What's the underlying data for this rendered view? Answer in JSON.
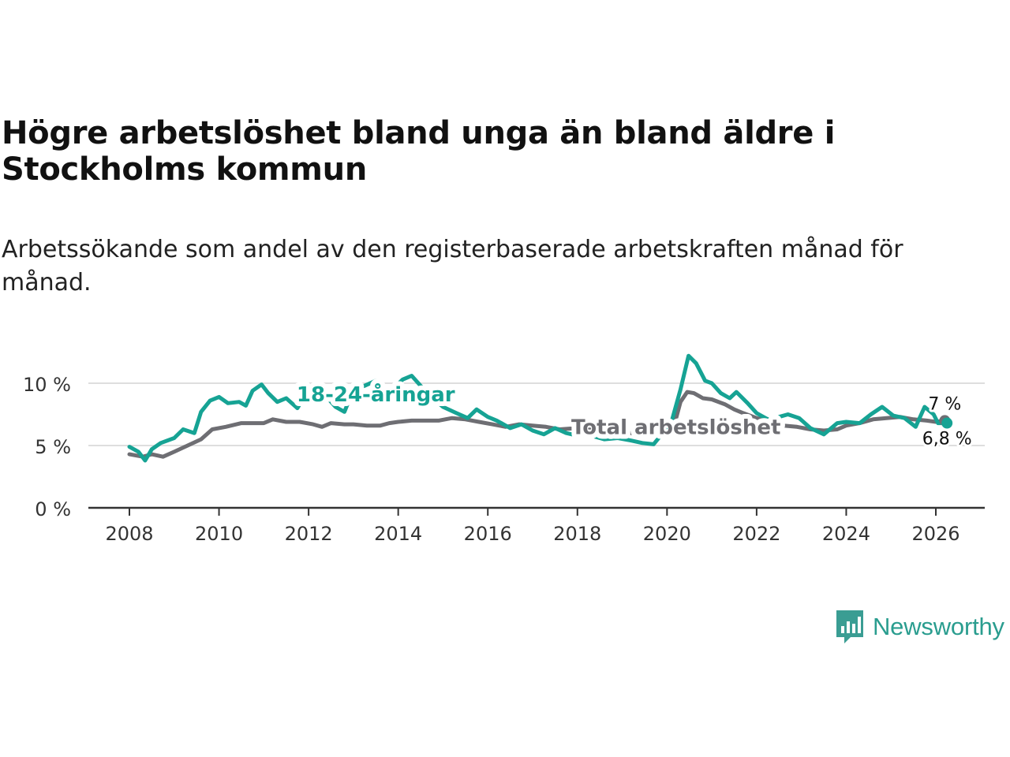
{
  "header": {
    "title": "Högre arbetslöshet bland unga än bland äldre i Stockholms kommun",
    "subtitle": "Arbetssökande som andel av den registerbaserade arbetskraften månad för månad."
  },
  "brand": {
    "name": "Newsworthy",
    "icon": "bar-chart-speech-icon",
    "color": "#3a9d93"
  },
  "chart_data": {
    "type": "line",
    "title": "Högre arbetslöshet bland unga än bland äldre i Stockholms kommun",
    "xlabel": "",
    "ylabel": "",
    "xlim": [
      2007.7,
      2027.0
    ],
    "ylim": [
      0,
      12.5
    ],
    "x_ticks": [
      2008,
      2010,
      2012,
      2014,
      2016,
      2018,
      2020,
      2022,
      2024,
      2026
    ],
    "x_tick_labels": [
      "2008",
      "2010",
      "2012",
      "2014",
      "2016",
      "2018",
      "2020",
      "2022",
      "2024",
      "2026"
    ],
    "y_ticks": [
      0,
      5,
      10
    ],
    "y_tick_labels": [
      "0 %",
      "5 %",
      "10 %"
    ],
    "grid": true,
    "series": [
      {
        "name": "Total arbetslöshet",
        "color": "#6e6e73",
        "end_label": "7 %",
        "points": [
          [
            2008.0,
            4.3
          ],
          [
            2008.3,
            4.1
          ],
          [
            2008.5,
            4.3
          ],
          [
            2008.75,
            4.1
          ],
          [
            2009.0,
            4.5
          ],
          [
            2009.3,
            5.0
          ],
          [
            2009.6,
            5.5
          ],
          [
            2009.85,
            6.3
          ],
          [
            2010.15,
            6.5
          ],
          [
            2010.5,
            6.8
          ],
          [
            2010.8,
            6.8
          ],
          [
            2011.0,
            6.8
          ],
          [
            2011.2,
            7.1
          ],
          [
            2011.5,
            6.9
          ],
          [
            2011.8,
            6.9
          ],
          [
            2012.1,
            6.7
          ],
          [
            2012.3,
            6.5
          ],
          [
            2012.5,
            6.8
          ],
          [
            2012.8,
            6.7
          ],
          [
            2013.0,
            6.7
          ],
          [
            2013.3,
            6.6
          ],
          [
            2013.6,
            6.6
          ],
          [
            2013.8,
            6.8
          ],
          [
            2014.0,
            6.9
          ],
          [
            2014.3,
            7.0
          ],
          [
            2014.6,
            7.0
          ],
          [
            2014.9,
            7.0
          ],
          [
            2015.2,
            7.2
          ],
          [
            2015.5,
            7.1
          ],
          [
            2015.8,
            6.9
          ],
          [
            2016.1,
            6.7
          ],
          [
            2016.4,
            6.5
          ],
          [
            2016.7,
            6.7
          ],
          [
            2017.0,
            6.6
          ],
          [
            2017.3,
            6.5
          ],
          [
            2017.6,
            6.3
          ],
          [
            2018.0,
            6.4
          ],
          [
            2018.3,
            6.3
          ],
          [
            2018.6,
            6.1
          ],
          [
            2019.0,
            6.0
          ],
          [
            2019.3,
            6.0
          ],
          [
            2019.6,
            6.0
          ],
          [
            2020.0,
            6.0
          ],
          [
            2020.15,
            6.5
          ],
          [
            2020.3,
            8.5
          ],
          [
            2020.45,
            9.3
          ],
          [
            2020.6,
            9.2
          ],
          [
            2020.8,
            8.8
          ],
          [
            2021.0,
            8.7
          ],
          [
            2021.3,
            8.3
          ],
          [
            2021.5,
            7.9
          ],
          [
            2021.7,
            7.6
          ],
          [
            2022.0,
            7.2
          ],
          [
            2022.3,
            6.9
          ],
          [
            2022.6,
            6.6
          ],
          [
            2022.9,
            6.5
          ],
          [
            2023.2,
            6.3
          ],
          [
            2023.5,
            6.2
          ],
          [
            2023.8,
            6.3
          ],
          [
            2024.0,
            6.6
          ],
          [
            2024.3,
            6.8
          ],
          [
            2024.6,
            7.1
          ],
          [
            2024.9,
            7.2
          ],
          [
            2025.2,
            7.3
          ],
          [
            2025.5,
            7.1
          ],
          [
            2025.8,
            7.0
          ],
          [
            2026.0,
            6.9
          ],
          [
            2026.2,
            7.0
          ]
        ]
      },
      {
        "name": "18-24-åringar",
        "color": "#16a394",
        "end_label": "6,8 %",
        "points": [
          [
            2008.0,
            4.9
          ],
          [
            2008.2,
            4.5
          ],
          [
            2008.35,
            3.8
          ],
          [
            2008.5,
            4.7
          ],
          [
            2008.7,
            5.2
          ],
          [
            2009.0,
            5.6
          ],
          [
            2009.2,
            6.3
          ],
          [
            2009.45,
            6.0
          ],
          [
            2009.6,
            7.7
          ],
          [
            2009.8,
            8.6
          ],
          [
            2010.0,
            8.9
          ],
          [
            2010.2,
            8.4
          ],
          [
            2010.45,
            8.5
          ],
          [
            2010.6,
            8.2
          ],
          [
            2010.75,
            9.4
          ],
          [
            2010.95,
            9.9
          ],
          [
            2011.1,
            9.2
          ],
          [
            2011.3,
            8.5
          ],
          [
            2011.5,
            8.8
          ],
          [
            2011.75,
            8.0
          ],
          [
            2012.0,
            9.5
          ],
          [
            2012.2,
            9.3
          ],
          [
            2012.45,
            8.7
          ],
          [
            2012.6,
            8.1
          ],
          [
            2012.8,
            7.7
          ],
          [
            2013.0,
            9.5
          ],
          [
            2013.25,
            9.8
          ],
          [
            2013.5,
            10.2
          ],
          [
            2013.7,
            9.2
          ],
          [
            2013.9,
            9.6
          ],
          [
            2014.1,
            10.3
          ],
          [
            2014.3,
            10.6
          ],
          [
            2014.6,
            9.4
          ],
          [
            2014.8,
            8.7
          ],
          [
            2015.0,
            8.1
          ],
          [
            2015.3,
            7.6
          ],
          [
            2015.55,
            7.2
          ],
          [
            2015.75,
            7.9
          ],
          [
            2016.0,
            7.3
          ],
          [
            2016.2,
            7.0
          ],
          [
            2016.5,
            6.4
          ],
          [
            2016.75,
            6.7
          ],
          [
            2017.0,
            6.2
          ],
          [
            2017.25,
            5.9
          ],
          [
            2017.5,
            6.4
          ],
          [
            2017.75,
            6.0
          ],
          [
            2018.0,
            5.8
          ],
          [
            2018.3,
            5.8
          ],
          [
            2018.6,
            5.5
          ],
          [
            2018.9,
            5.6
          ],
          [
            2019.2,
            5.4
          ],
          [
            2019.45,
            5.2
          ],
          [
            2019.7,
            5.1
          ],
          [
            2019.95,
            6.2
          ],
          [
            2020.1,
            6.9
          ],
          [
            2020.3,
            9.5
          ],
          [
            2020.48,
            12.2
          ],
          [
            2020.65,
            11.6
          ],
          [
            2020.85,
            10.2
          ],
          [
            2021.0,
            10.0
          ],
          [
            2021.2,
            9.2
          ],
          [
            2021.4,
            8.8
          ],
          [
            2021.55,
            9.3
          ],
          [
            2021.8,
            8.4
          ],
          [
            2022.0,
            7.6
          ],
          [
            2022.25,
            7.1
          ],
          [
            2022.5,
            7.3
          ],
          [
            2022.7,
            7.5
          ],
          [
            2022.95,
            7.2
          ],
          [
            2023.2,
            6.4
          ],
          [
            2023.5,
            5.9
          ],
          [
            2023.8,
            6.8
          ],
          [
            2024.0,
            6.9
          ],
          [
            2024.3,
            6.8
          ],
          [
            2024.55,
            7.5
          ],
          [
            2024.8,
            8.1
          ],
          [
            2025.05,
            7.4
          ],
          [
            2025.3,
            7.2
          ],
          [
            2025.55,
            6.5
          ],
          [
            2025.75,
            8.1
          ],
          [
            2025.95,
            7.5
          ],
          [
            2026.05,
            6.8
          ],
          [
            2026.25,
            6.8
          ]
        ]
      }
    ],
    "annotations": [
      {
        "text": "18-24-åringar",
        "x": 2013.5,
        "y": 9.1,
        "series": "18-24-åringar"
      },
      {
        "text": "Total arbetslöshet",
        "x": 2020.2,
        "y": 6.5,
        "series": "Total arbetslöshet"
      }
    ]
  }
}
